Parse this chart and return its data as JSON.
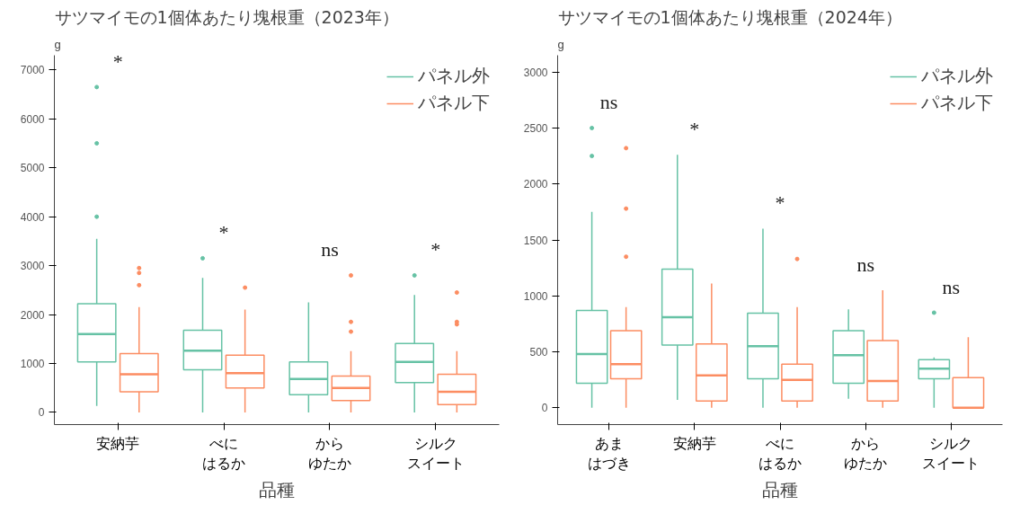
{
  "chart_data": [
    {
      "type": "box",
      "title": "サツマイモの1個体あたり塊根重（2023年）",
      "xlabel": "品種",
      "ylabel": "g",
      "categories": [
        "安納芋",
        "べにはるか",
        "からゆたか",
        "シルクスイート"
      ],
      "ylim": [
        -250,
        7300
      ],
      "yticks": [
        0,
        1000,
        2000,
        3000,
        4000,
        5000,
        6000,
        7000
      ],
      "legend": "top right",
      "grid": false,
      "series": [
        {
          "name": "パネル外",
          "color": "#66c2a5",
          "boxes": [
            {
              "low": 130,
              "q1": 1030,
              "median": 1600,
              "q3": 2220,
              "high": 3550,
              "outliers": [
                4000,
                5500,
                6650
              ]
            },
            {
              "low": 0,
              "q1": 870,
              "median": 1260,
              "q3": 1680,
              "high": 2750,
              "outliers": [
                3150
              ]
            },
            {
              "low": 0,
              "q1": 360,
              "median": 680,
              "q3": 1030,
              "high": 2250
            },
            {
              "low": 0,
              "q1": 610,
              "median": 1030,
              "q3": 1410,
              "high": 2400,
              "outliers": [
                2800
              ]
            }
          ]
        },
        {
          "name": "パネル下",
          "color": "#fc8d62",
          "boxes": [
            {
              "low": 0,
              "q1": 420,
              "median": 780,
              "q3": 1200,
              "high": 2150,
              "outliers": [
                2600,
                2850,
                2950
              ]
            },
            {
              "low": 0,
              "q1": 500,
              "median": 800,
              "q3": 1170,
              "high": 2100,
              "outliers": [
                2550
              ]
            },
            {
              "low": 0,
              "q1": 240,
              "median": 500,
              "q3": 740,
              "high": 1250,
              "outliers": [
                1650,
                1850,
                2800
              ]
            },
            {
              "low": 0,
              "q1": 160,
              "median": 420,
              "q3": 780,
              "high": 1250,
              "outliers": [
                1800,
                1850,
                2450
              ]
            }
          ]
        }
      ],
      "annotations": [
        "*",
        "*",
        "ns",
        "*"
      ]
    },
    {
      "type": "box",
      "title": "サツマイモの1個体あたり塊根重（2024年）",
      "xlabel": "品種",
      "ylabel": "g",
      "categories": [
        "あまはづき",
        "安納芋",
        "べにはるか",
        "からゆたか",
        "シルクスイート"
      ],
      "ylim": [
        -150,
        3150
      ],
      "yticks": [
        0,
        500,
        1000,
        1500,
        2000,
        2500,
        3000
      ],
      "legend": "top right",
      "grid": false,
      "series": [
        {
          "name": "パネル外",
          "color": "#66c2a5",
          "boxes": [
            {
              "low": 0,
              "q1": 220,
              "median": 480,
              "q3": 870,
              "high": 1750,
              "outliers": [
                2250,
                2500
              ]
            },
            {
              "low": 70,
              "q1": 560,
              "median": 810,
              "q3": 1240,
              "high": 2260
            },
            {
              "low": 0,
              "q1": 260,
              "median": 550,
              "q3": 845,
              "high": 1600
            },
            {
              "low": 80,
              "q1": 220,
              "median": 470,
              "q3": 690,
              "high": 880
            },
            {
              "low": 0,
              "q1": 260,
              "median": 350,
              "q3": 430,
              "high": 450,
              "outliers": [
                850
              ]
            }
          ]
        },
        {
          "name": "パネル下",
          "color": "#fc8d62",
          "boxes": [
            {
              "low": 0,
              "q1": 260,
              "median": 390,
              "q3": 690,
              "high": 900,
              "outliers": [
                1350,
                1780,
                2320
              ]
            },
            {
              "low": 0,
              "q1": 60,
              "median": 290,
              "q3": 570,
              "high": 1110
            },
            {
              "low": 0,
              "q1": 60,
              "median": 250,
              "q3": 390,
              "high": 900,
              "outliers": [
                1330
              ]
            },
            {
              "low": 0,
              "q1": 60,
              "median": 240,
              "q3": 600,
              "high": 1050
            },
            {
              "low": 0,
              "q1": 0,
              "median": 0,
              "q3": 270,
              "high": 630
            }
          ]
        }
      ],
      "annotations": [
        "ns",
        "*",
        "*",
        "ns",
        "ns"
      ]
    }
  ]
}
